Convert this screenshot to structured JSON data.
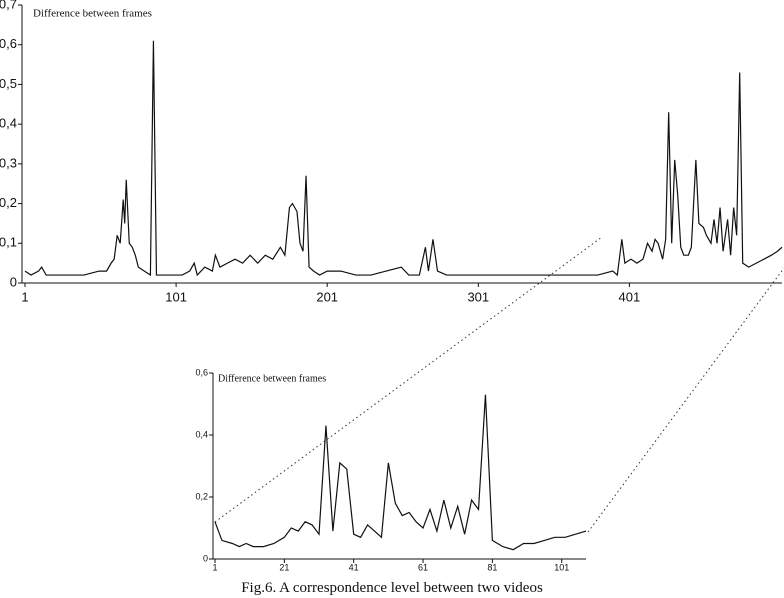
{
  "chart_data": [
    {
      "type": "line",
      "y_label": "Difference between frames",
      "xlim": [
        1,
        502
      ],
      "xticks": [
        1,
        101,
        201,
        301,
        401
      ],
      "ylim": [
        0,
        0.7
      ],
      "yticks": [
        0,
        {
          "value": 0.1,
          "label": "0,1"
        },
        {
          "value": 0.2,
          "label": "0,2"
        },
        {
          "value": 0.3,
          "label": "0,3"
        },
        {
          "value": 0.4,
          "label": "0,4"
        },
        {
          "value": 0.5,
          "label": "0,5"
        },
        {
          "value": 0.6,
          "label": "0,6"
        },
        {
          "value": 0.7,
          "label": "0,7"
        }
      ],
      "color": "#111111",
      "x": [
        1,
        5,
        10,
        12,
        15,
        20,
        30,
        40,
        50,
        55,
        58,
        60,
        62,
        64,
        66,
        67,
        68,
        70,
        72,
        74,
        76,
        80,
        84,
        86,
        88,
        92,
        100,
        105,
        110,
        113,
        115,
        120,
        125,
        127,
        130,
        135,
        140,
        145,
        150,
        155,
        160,
        165,
        170,
        173,
        176,
        178,
        181,
        183,
        185,
        187,
        189,
        192,
        196,
        201,
        210,
        220,
        230,
        240,
        250,
        255,
        262,
        266,
        268,
        271,
        274,
        280,
        290,
        300,
        320,
        340,
        360,
        380,
        390,
        393,
        396,
        398,
        402,
        406,
        410,
        413,
        416,
        418,
        420,
        423,
        425,
        427,
        429,
        431,
        433,
        435,
        437,
        440,
        442,
        445,
        447,
        450,
        452,
        455,
        457,
        459,
        461,
        463,
        466,
        468,
        470,
        472,
        474,
        476,
        480,
        485,
        490,
        495,
        499,
        502
      ],
      "values": [
        0.03,
        0.02,
        0.03,
        0.04,
        0.02,
        0.02,
        0.02,
        0.02,
        0.03,
        0.03,
        0.05,
        0.06,
        0.12,
        0.1,
        0.21,
        0.15,
        0.26,
        0.1,
        0.09,
        0.07,
        0.04,
        0.03,
        0.02,
        0.61,
        0.02,
        0.02,
        0.02,
        0.02,
        0.03,
        0.05,
        0.02,
        0.04,
        0.03,
        0.07,
        0.04,
        0.05,
        0.06,
        0.05,
        0.07,
        0.05,
        0.07,
        0.06,
        0.09,
        0.07,
        0.19,
        0.2,
        0.18,
        0.1,
        0.08,
        0.27,
        0.04,
        0.03,
        0.02,
        0.03,
        0.03,
        0.02,
        0.02,
        0.03,
        0.04,
        0.02,
        0.02,
        0.09,
        0.03,
        0.11,
        0.03,
        0.02,
        0.02,
        0.02,
        0.02,
        0.02,
        0.02,
        0.02,
        0.03,
        0.02,
        0.11,
        0.05,
        0.06,
        0.05,
        0.06,
        0.1,
        0.08,
        0.11,
        0.1,
        0.06,
        0.11,
        0.43,
        0.1,
        0.31,
        0.22,
        0.09,
        0.07,
        0.07,
        0.09,
        0.31,
        0.15,
        0.14,
        0.12,
        0.1,
        0.16,
        0.1,
        0.19,
        0.08,
        0.16,
        0.07,
        0.19,
        0.12,
        0.53,
        0.05,
        0.04,
        0.05,
        0.06,
        0.07,
        0.08,
        0.09
      ]
    },
    {
      "type": "line",
      "y_label": "Difference between frames",
      "xlim": [
        1,
        108
      ],
      "xticks": [
        1,
        21,
        41,
        61,
        81,
        101
      ],
      "ylim": [
        0,
        0.6
      ],
      "yticks": [
        0,
        {
          "value": 0.2,
          "label": "0,2"
        },
        {
          "value": 0.4,
          "label": "0,4"
        },
        {
          "value": 0.6,
          "label": "0,6"
        }
      ],
      "color": "#111111",
      "x": [
        1,
        3,
        6,
        8,
        10,
        12,
        15,
        18,
        21,
        23,
        25,
        27,
        29,
        31,
        33,
        35,
        37,
        39,
        41,
        43,
        45,
        47,
        49,
        51,
        53,
        55,
        57,
        59,
        61,
        63,
        65,
        67,
        69,
        71,
        73,
        75,
        77,
        79,
        81,
        84,
        87,
        90,
        93,
        96,
        99,
        102,
        105,
        108
      ],
      "values": [
        0.12,
        0.06,
        0.05,
        0.04,
        0.05,
        0.04,
        0.04,
        0.05,
        0.07,
        0.1,
        0.09,
        0.12,
        0.11,
        0.08,
        0.43,
        0.09,
        0.31,
        0.29,
        0.08,
        0.07,
        0.11,
        0.09,
        0.07,
        0.31,
        0.18,
        0.14,
        0.15,
        0.12,
        0.1,
        0.16,
        0.09,
        0.19,
        0.1,
        0.17,
        0.08,
        0.19,
        0.16,
        0.53,
        0.06,
        0.04,
        0.03,
        0.05,
        0.05,
        0.06,
        0.07,
        0.07,
        0.08,
        0.09
      ]
    }
  ],
  "caption": "Fig.6. A correspondence level between two videos"
}
